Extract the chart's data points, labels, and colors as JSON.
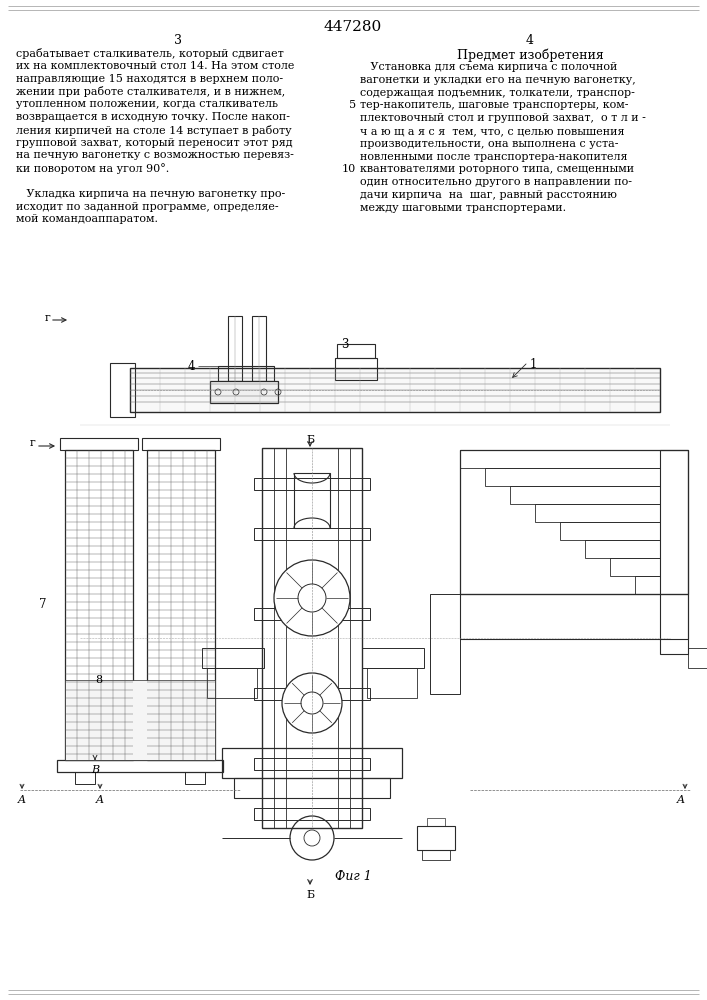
{
  "patent_number": "447280",
  "page_left": "3",
  "page_right": "4",
  "section_title": "Предмет изобретения",
  "left_text_lines": [
    "срабатывает сталкиватель, который сдвигает",
    "их на комплектовочный стол 14. На этом столе",
    "направляющие 15 находятся в верхнем поло-",
    "жении при работе сталкивателя, и в нижнем,",
    "утопленном положении, когда сталкиватель",
    "возвращается в исходную точку. После накоп-",
    "ления кирпичей на столе 14 вступает в работу",
    "групповой захват, который переносит этот ряд",
    "на печную вагонетку с возможностью перевяз-",
    "ки поворотом на угол 90°.",
    "",
    "   Укладка кирпича на печную вагонетку про-",
    "исходит по заданной программе, определяе-",
    "мой командоаппаратом."
  ],
  "right_text_lines": [
    "   Установка для съема кирпича с полочной",
    "вагонетки и укладки его на печную вагонетку,",
    "содержащая подъемник, толкатели, транспор-",
    "тер-накопитель, шаговые транспортеры, ком-",
    "плектовочный стол и групповой захват,  о т л и -",
    "ч а ю щ а я с я  тем, что, с целью повышения",
    "производительности, она выполнена с уста-",
    "новленными после транспортера-накопителя",
    "квантователями роторного типа, смещенными",
    "один относительно другого в направлении по-",
    "дачи кирпича  на  шаг, равный расстоянию",
    "между шаговыми транспортерами."
  ],
  "fig_caption": "Фиг 1",
  "bg_color": "#ffffff",
  "text_color": "#000000",
  "line_color": "#2a2a2a"
}
